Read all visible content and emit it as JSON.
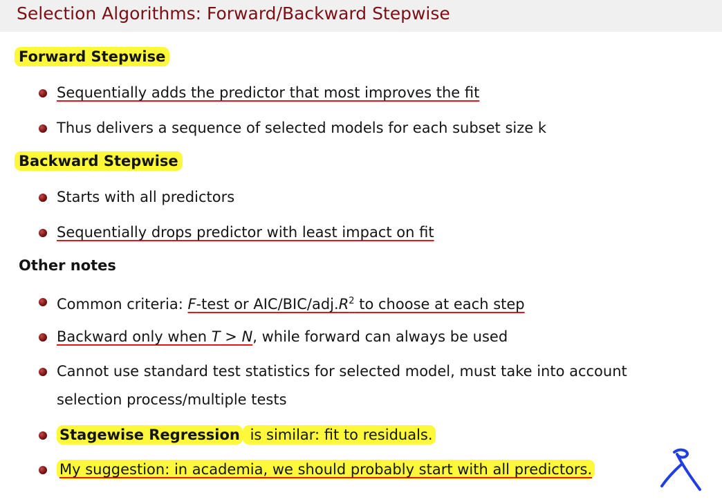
{
  "title": "Selection Algorithms: Forward/Backward Stepwise",
  "sections": {
    "forward": {
      "heading": "Forward Stepwise",
      "items": [
        "Sequentially adds the predictor that most improves the fit",
        "Thus delivers a sequence of selected models for each subset size k"
      ]
    },
    "backward": {
      "heading": "Backward Stepwise",
      "items": [
        "Starts with all predictors",
        "Sequentially drops predictor with least impact on fit"
      ]
    },
    "other": {
      "heading": "Other notes",
      "criteria": {
        "lead": "Common criteria: ",
        "f": "F",
        "mid": "-test or AIC/BIC/adj.",
        "r": "R",
        "sup": "2",
        "tail": " to choose at each step"
      },
      "backward_when": {
        "lead": "Backward only when ",
        "t": "T",
        "gt": " > ",
        "n": "N",
        "tail": ", while forward can always be used"
      },
      "cannot": {
        "line1": "Cannot use standard test statistics for selected model, must take into account",
        "line2": "selection process/multiple tests"
      },
      "stagewise": {
        "bold": "Stagewise Regression",
        "rest": " is similar: fit to residuals."
      },
      "suggestion": "My suggestion: in academia, we should probably start with all predictors."
    }
  },
  "colors": {
    "title": "#7b0f16",
    "highlight": "#fdf93a",
    "underline": "#e3161a",
    "annotation": "#1f3fe0"
  }
}
